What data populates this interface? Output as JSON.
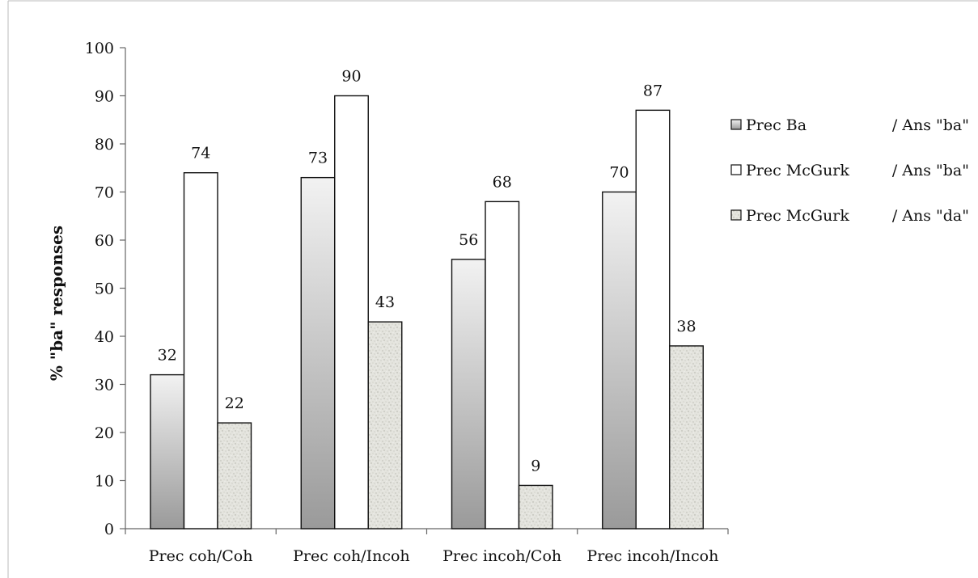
{
  "chart_data": {
    "type": "bar",
    "title": "",
    "xlabel": "",
    "ylabel": "% \"ba\" responses",
    "ylim": [
      0,
      100
    ],
    "yticks": [
      0,
      10,
      20,
      30,
      40,
      50,
      60,
      70,
      80,
      90,
      100
    ],
    "categories": [
      "Prec coh/Coh",
      "Prec coh/Incoh",
      "Prec incoh/Coh",
      "Prec incoh/Incoh"
    ],
    "series": [
      {
        "name": "Prec Ba",
        "name_suffix": "/ Ans \"ba\"",
        "values": [
          32,
          73,
          56,
          70
        ],
        "labels": [
          "32",
          "73",
          "56",
          "70"
        ]
      },
      {
        "name": "Prec McGurk",
        "name_suffix": "/ Ans \"ba\"",
        "values": [
          74,
          90,
          68,
          87
        ],
        "labels": [
          "74",
          "90",
          "68",
          "87"
        ]
      },
      {
        "name": "Prec McGurk",
        "name_suffix": "/ Ans \"da\"",
        "values": [
          22,
          43,
          9,
          38
        ],
        "labels": [
          "22",
          "43",
          "9",
          "38"
        ]
      }
    ],
    "legend_position": "right",
    "grid": false
  },
  "colors": {
    "series_fills": [
      "gradient-gray",
      "#ffffff",
      "speckled-gray"
    ],
    "gradient_top": "#f2f2f2",
    "gradient_bottom": "#9a9a9a",
    "speckle_base": "#e4e4de",
    "border": "#111111",
    "axis": "#666666"
  }
}
